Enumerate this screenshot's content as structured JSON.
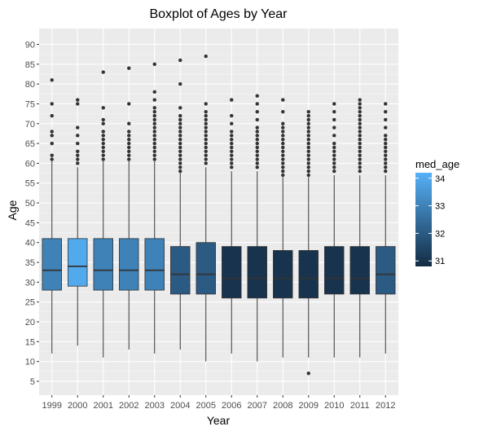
{
  "chart_data": {
    "type": "boxplot",
    "title": "Boxplot of Ages by Year",
    "xlabel": "Year",
    "ylabel": "Age",
    "ylim": [
      1.5,
      94
    ],
    "yticks": [
      5,
      10,
      15,
      20,
      25,
      30,
      35,
      40,
      45,
      50,
      55,
      60,
      65,
      70,
      75,
      80,
      85,
      90
    ],
    "grid": true,
    "legend": {
      "title": "med_age",
      "position": "right",
      "ticks": [
        31,
        32,
        33,
        34
      ],
      "range": [
        30.8,
        34.2
      ],
      "color_low": "#132b43",
      "color_high": "#56b1f7"
    },
    "categories": [
      "1999",
      "2000",
      "2001",
      "2002",
      "2003",
      "2004",
      "2005",
      "2006",
      "2007",
      "2008",
      "2009",
      "2010",
      "2011",
      "2012"
    ],
    "boxes": [
      {
        "category": "1999",
        "whisker_low": 12,
        "q1": 28,
        "median": 33,
        "q3": 41,
        "whisker_high": 60.5,
        "med_age": 33,
        "outliers": [
          61,
          62,
          65,
          67,
          68,
          72,
          75,
          81
        ]
      },
      {
        "category": "2000",
        "whisker_low": 14,
        "q1": 29,
        "median": 34,
        "q3": 41,
        "whisker_high": 59,
        "med_age": 34,
        "outliers": [
          60,
          61,
          62,
          63,
          65,
          67,
          69,
          75,
          76
        ]
      },
      {
        "category": "2001",
        "whisker_low": 11,
        "q1": 28,
        "median": 33,
        "q3": 41,
        "whisker_high": 60.5,
        "med_age": 33,
        "outliers": [
          61,
          62,
          63,
          64,
          65,
          66,
          67,
          68,
          70,
          71,
          74,
          83
        ]
      },
      {
        "category": "2002",
        "whisker_low": 13,
        "q1": 28,
        "median": 33,
        "q3": 41,
        "whisker_high": 60.5,
        "med_age": 33,
        "outliers": [
          61,
          62,
          63,
          64,
          65,
          66,
          67,
          68,
          70,
          75,
          84
        ]
      },
      {
        "category": "2003",
        "whisker_low": 12,
        "q1": 28,
        "median": 33,
        "q3": 41,
        "whisker_high": 60.5,
        "med_age": 33,
        "outliers": [
          61,
          62,
          63,
          64,
          65,
          66,
          67,
          68,
          69,
          70,
          71,
          72,
          73,
          74,
          76,
          78,
          85
        ]
      },
      {
        "category": "2004",
        "whisker_low": 13,
        "q1": 27,
        "median": 32,
        "q3": 39,
        "whisker_high": 57.5,
        "med_age": 32,
        "outliers": [
          58,
          59,
          60,
          61,
          62,
          63,
          64,
          65,
          66,
          67,
          68,
          69,
          70,
          71,
          72,
          74,
          80,
          86
        ]
      },
      {
        "category": "2005",
        "whisker_low": 10,
        "q1": 27,
        "median": 32,
        "q3": 40,
        "whisker_high": 59,
        "med_age": 32,
        "outliers": [
          60,
          61,
          62,
          63,
          64,
          65,
          66,
          67,
          68,
          69,
          70,
          71,
          72,
          73,
          75,
          87
        ]
      },
      {
        "category": "2006",
        "whisker_low": 12,
        "q1": 26,
        "median": 31,
        "q3": 39,
        "whisker_high": 58,
        "med_age": 31,
        "outliers": [
          59,
          60,
          61,
          62,
          63,
          64,
          65,
          66,
          67,
          68,
          70,
          72,
          76
        ]
      },
      {
        "category": "2007",
        "whisker_low": 10,
        "q1": 26,
        "median": 31,
        "q3": 39,
        "whisker_high": 58,
        "med_age": 31,
        "outliers": [
          59,
          60,
          61,
          62,
          63,
          64,
          65,
          66,
          67,
          68,
          69,
          71,
          73,
          75,
          77
        ]
      },
      {
        "category": "2008",
        "whisker_low": 11,
        "q1": 26,
        "median": 31,
        "q3": 38,
        "whisker_high": 56.5,
        "med_age": 31,
        "outliers": [
          57,
          58,
          59,
          60,
          61,
          62,
          63,
          64,
          65,
          66,
          67,
          68,
          69,
          70,
          73,
          76
        ]
      },
      {
        "category": "2009",
        "whisker_low": 11,
        "q1": 26,
        "median": 31,
        "q3": 38,
        "whisker_high": 56.5,
        "med_age": 31,
        "outliers": [
          7,
          57,
          58,
          59,
          60,
          61,
          62,
          63,
          64,
          65,
          66,
          67,
          68,
          69,
          70,
          71,
          72,
          73
        ]
      },
      {
        "category": "2010",
        "whisker_low": 11,
        "q1": 27,
        "median": 31,
        "q3": 39,
        "whisker_high": 57,
        "med_age": 31,
        "outliers": [
          58,
          59,
          60,
          61,
          62,
          63,
          64,
          65,
          67,
          69,
          71,
          73,
          75
        ]
      },
      {
        "category": "2011",
        "whisker_low": 11,
        "q1": 27,
        "median": 31,
        "q3": 39,
        "whisker_high": 57,
        "med_age": 31,
        "outliers": [
          58,
          59,
          60,
          61,
          62,
          63,
          64,
          65,
          66,
          67,
          68,
          69,
          70,
          71,
          72,
          73,
          74,
          75,
          76
        ]
      },
      {
        "category": "2012",
        "whisker_low": 12,
        "q1": 27,
        "median": 32,
        "q3": 39,
        "whisker_high": 57,
        "med_age": 32,
        "outliers": [
          58,
          59,
          60,
          61,
          62,
          63,
          64,
          65,
          66,
          67,
          69,
          71,
          73,
          75
        ]
      }
    ]
  }
}
